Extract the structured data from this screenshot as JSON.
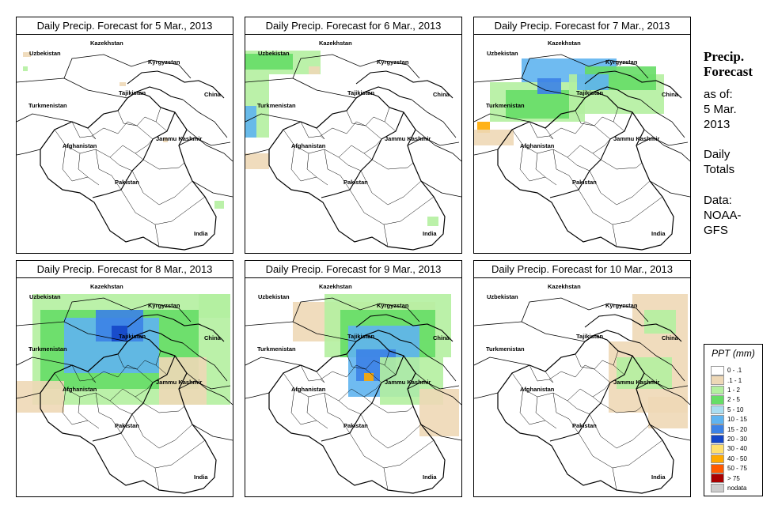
{
  "panels": [
    {
      "title": "Daily Precip. Forecast for  5 Mar., 2013",
      "day": "5 Mar."
    },
    {
      "title": "Daily Precip. Forecast for  6 Mar., 2013",
      "day": "6 Mar."
    },
    {
      "title": "Daily Precip. Forecast for  7 Mar., 2013",
      "day": "7 Mar."
    },
    {
      "title": "Daily Precip. Forecast for  8 Mar., 2013",
      "day": "8 Mar."
    },
    {
      "title": "Daily Precip. Forecast for  9 Mar., 2013",
      "day": "9 Mar."
    },
    {
      "title": "Daily Precip. Forecast for  10 Mar., 2013",
      "day": "10 Mar."
    }
  ],
  "map_labels": {
    "kazakhstan": "Kazekhstan",
    "uzbekistan": "Uzbekistan",
    "kyrgyzstan": "Kyrgyzstan",
    "tajikistan": "Tajikistan",
    "turkmenistan": "Turkmenistan",
    "china": "China",
    "jammu": "Jammu Kashmir",
    "afghanistan": "Afghanistan",
    "pakistan": "Pakistan",
    "india": "India"
  },
  "side": {
    "title_line1": "Precip.",
    "title_line2": "Forecast",
    "asof_line1": "as of:",
    "asof_line2": "5 Mar.",
    "asof_line3": "2013",
    "daily_line1": "Daily",
    "daily_line2": "Totals",
    "data_line1": "Data:",
    "data_line2": "NOAA-",
    "data_line3": "GFS"
  },
  "legend": {
    "title": "PPT (mm)",
    "items": [
      {
        "label": "0 - .1",
        "color": "#ffffff"
      },
      {
        "label": ".1 - 1",
        "color": "#eed8b6"
      },
      {
        "label": "1 - 2",
        "color": "#b4f0a0"
      },
      {
        "label": "2 - 5",
        "color": "#66dd66"
      },
      {
        "label": "5 - 10",
        "color": "#aaddf0"
      },
      {
        "label": "10 - 15",
        "color": "#5fb4f0"
      },
      {
        "label": "15 - 20",
        "color": "#3c82e6"
      },
      {
        "label": "20 - 30",
        "color": "#1446c8"
      },
      {
        "label": "30 - 40",
        "color": "#ffe06e"
      },
      {
        "label": "40 - 50",
        "color": "#ffaa00"
      },
      {
        "label": "50 - 75",
        "color": "#ff5a00"
      },
      {
        "label": "> 75",
        "color": "#aa0000"
      },
      {
        "label": "nodata",
        "color": "#cccccc"
      }
    ]
  },
  "colors": {
    "tan": "#eed8b6",
    "lightgreen": "#b4f0a0",
    "green": "#66dd66",
    "lightblue": "#aaddf0",
    "blue": "#5fb4f0",
    "midblue": "#3c82e6",
    "darkblue": "#1446c8",
    "orange": "#ffaa00"
  }
}
